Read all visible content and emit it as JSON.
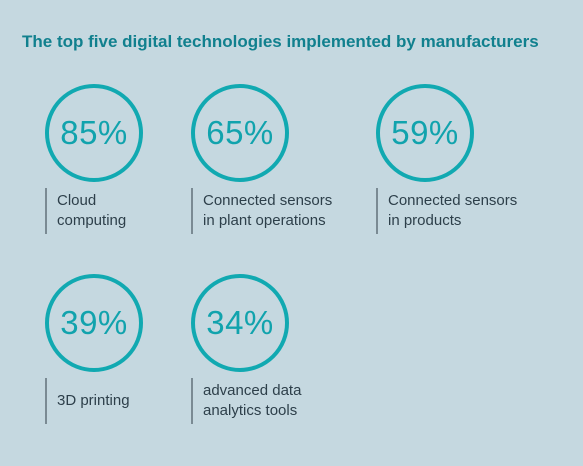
{
  "title": "The top five digital technologies implemented by manufacturers",
  "stats": [
    {
      "percent": "85%",
      "label_line1": "Cloud",
      "label_line2": "computing"
    },
    {
      "percent": "65%",
      "label_line1": "Connected sensors",
      "label_line2": "in plant operations"
    },
    {
      "percent": "59%",
      "label_line1": "Connected sensors",
      "label_line2": "in products"
    },
    {
      "percent": "39%",
      "label_line1": "3D printing",
      "label_line2": ""
    },
    {
      "percent": "34%",
      "label_line1": "advanced data",
      "label_line2": "analytics tools"
    }
  ],
  "colors": {
    "background": "#c5d8e0",
    "accent": "#11a9b1",
    "title": "#11808e",
    "text": "#2d3f4a"
  }
}
